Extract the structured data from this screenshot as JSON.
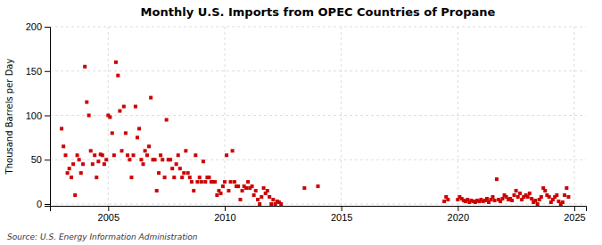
{
  "chart_data": {
    "type": "scatter",
    "title": "Monthly U.S. Imports from OPEC Countries of Propane",
    "y_label": "Thousand Barrels per Day",
    "source": "Source: U.S. Energy Information Administration",
    "color": "#cc0000",
    "marker": "square",
    "grid": true,
    "xlim": [
      2002.5,
      2025.5
    ],
    "ylim": [
      -2,
      200
    ],
    "xticks": [
      2005,
      2010,
      2015,
      2020,
      2025
    ],
    "yticks": [
      0,
      50,
      100,
      150,
      200
    ],
    "x": [
      2003.0,
      2003.08,
      2003.17,
      2003.25,
      2003.33,
      2003.42,
      2003.5,
      2003.58,
      2003.67,
      2003.75,
      2003.83,
      2003.92,
      2004.0,
      2004.08,
      2004.17,
      2004.25,
      2004.33,
      2004.42,
      2004.5,
      2004.58,
      2004.67,
      2004.75,
      2004.83,
      2004.92,
      2005.0,
      2005.08,
      2005.17,
      2005.25,
      2005.33,
      2005.42,
      2005.5,
      2005.58,
      2005.67,
      2005.75,
      2005.83,
      2005.92,
      2006.0,
      2006.08,
      2006.17,
      2006.25,
      2006.33,
      2006.42,
      2006.5,
      2006.58,
      2006.67,
      2006.75,
      2006.83,
      2006.92,
      2007.0,
      2007.08,
      2007.17,
      2007.25,
      2007.33,
      2007.42,
      2007.5,
      2007.58,
      2007.67,
      2007.75,
      2007.83,
      2007.92,
      2008.0,
      2008.08,
      2008.17,
      2008.25,
      2008.33,
      2008.42,
      2008.5,
      2008.58,
      2008.67,
      2008.75,
      2008.83,
      2008.92,
      2009.0,
      2009.08,
      2009.17,
      2009.25,
      2009.33,
      2009.42,
      2009.5,
      2009.58,
      2009.67,
      2009.75,
      2009.83,
      2009.92,
      2010.0,
      2010.08,
      2010.17,
      2010.25,
      2010.33,
      2010.42,
      2010.5,
      2010.58,
      2010.67,
      2010.75,
      2010.83,
      2010.92,
      2011.0,
      2011.08,
      2011.17,
      2011.25,
      2011.33,
      2011.42,
      2011.5,
      2011.58,
      2011.67,
      2011.75,
      2011.83,
      2011.92,
      2012.0,
      2012.08,
      2012.17,
      2012.25,
      2012.33,
      2012.42,
      2013.42,
      2014.0,
      2019.42,
      2019.5,
      2019.58,
      2020.0,
      2020.08,
      2020.17,
      2020.25,
      2020.33,
      2020.42,
      2020.5,
      2020.58,
      2020.67,
      2020.75,
      2020.83,
      2020.92,
      2021.0,
      2021.08,
      2021.17,
      2021.25,
      2021.33,
      2021.42,
      2021.5,
      2021.58,
      2021.67,
      2021.75,
      2021.83,
      2021.92,
      2022.0,
      2022.08,
      2022.17,
      2022.25,
      2022.33,
      2022.42,
      2022.5,
      2022.58,
      2022.67,
      2022.75,
      2022.83,
      2022.92,
      2023.0,
      2023.08,
      2023.17,
      2023.25,
      2023.33,
      2023.42,
      2023.5,
      2023.58,
      2023.67,
      2023.75,
      2023.83,
      2023.92,
      2024.0,
      2024.08,
      2024.17,
      2024.25,
      2024.33,
      2024.42,
      2024.5,
      2024.58,
      2024.67,
      2024.75
    ],
    "values": [
      85,
      65,
      55,
      35,
      40,
      30,
      45,
      10,
      55,
      50,
      35,
      45,
      155,
      115,
      100,
      60,
      45,
      55,
      30,
      48,
      56,
      55,
      45,
      50,
      100,
      98,
      80,
      55,
      160,
      145,
      105,
      60,
      110,
      80,
      55,
      50,
      30,
      55,
      110,
      75,
      85,
      50,
      45,
      60,
      55,
      65,
      120,
      50,
      50,
      15,
      35,
      55,
      50,
      30,
      95,
      50,
      50,
      40,
      30,
      45,
      55,
      40,
      30,
      35,
      60,
      35,
      30,
      25,
      15,
      55,
      25,
      30,
      25,
      48,
      25,
      30,
      30,
      25,
      25,
      25,
      10,
      15,
      12,
      20,
      25,
      55,
      15,
      25,
      60,
      25,
      20,
      20,
      5,
      15,
      20,
      18,
      25,
      18,
      20,
      10,
      15,
      5,
      0,
      8,
      18,
      12,
      15,
      8,
      0,
      5,
      0,
      3,
      2,
      0,
      18,
      20,
      3,
      8,
      5,
      5,
      8,
      6,
      4,
      3,
      5,
      2,
      4,
      3,
      2,
      4,
      3,
      5,
      3,
      4,
      6,
      2,
      5,
      8,
      4,
      28,
      5,
      3,
      6,
      10,
      8,
      5,
      6,
      4,
      10,
      15,
      8,
      12,
      5,
      8,
      10,
      8,
      12,
      6,
      2,
      4,
      0,
      5,
      8,
      18,
      15,
      10,
      8,
      2,
      5,
      8,
      10,
      3,
      0,
      2,
      10,
      18,
      8
    ]
  }
}
